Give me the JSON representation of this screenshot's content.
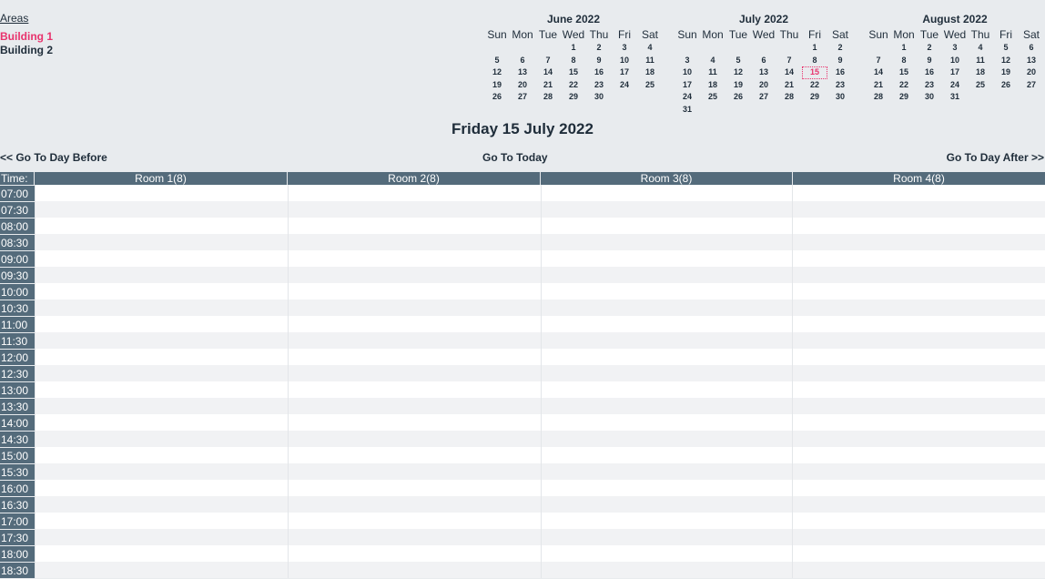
{
  "areas": {
    "title": "Areas",
    "items": [
      {
        "label": "Building 1",
        "active": true
      },
      {
        "label": "Building 2",
        "active": false
      }
    ]
  },
  "weekdays": [
    "Sun",
    "Mon",
    "Tue",
    "Wed",
    "Thu",
    "Fri",
    "Sat"
  ],
  "calendars": [
    {
      "title": "June 2022",
      "days": [
        "",
        "",
        "",
        "1",
        "2",
        "3",
        "4",
        "5",
        "6",
        "7",
        "8",
        "9",
        "10",
        "11",
        "12",
        "13",
        "14",
        "15",
        "16",
        "17",
        "18",
        "19",
        "20",
        "21",
        "22",
        "23",
        "24",
        "25",
        "26",
        "27",
        "28",
        "29",
        "30",
        "",
        ""
      ],
      "today": ""
    },
    {
      "title": "July 2022",
      "days": [
        "",
        "",
        "",
        "",
        "",
        "1",
        "2",
        "3",
        "4",
        "5",
        "6",
        "7",
        "8",
        "9",
        "10",
        "11",
        "12",
        "13",
        "14",
        "15",
        "16",
        "17",
        "18",
        "19",
        "20",
        "21",
        "22",
        "23",
        "24",
        "25",
        "26",
        "27",
        "28",
        "29",
        "30",
        "31",
        "",
        "",
        "",
        "",
        "",
        ""
      ],
      "today": "15"
    },
    {
      "title": "August 2022",
      "days": [
        "",
        "1",
        "2",
        "3",
        "4",
        "5",
        "6",
        "7",
        "8",
        "9",
        "10",
        "11",
        "12",
        "13",
        "14",
        "15",
        "16",
        "17",
        "18",
        "19",
        "20",
        "21",
        "22",
        "23",
        "24",
        "25",
        "26",
        "27",
        "28",
        "29",
        "30",
        "31",
        "",
        "",
        ""
      ],
      "today": ""
    }
  ],
  "date_heading": "Friday 15 July 2022",
  "nav": {
    "prev": "<< Go To Day Before",
    "today": "Go To Today",
    "next": "Go To Day After >>"
  },
  "schedule": {
    "time_header": "Time:",
    "rooms": [
      "Room 1(8)",
      "Room 2(8)",
      "Room 3(8)",
      "Room 4(8)"
    ],
    "times": [
      "07:00",
      "07:30",
      "08:00",
      "08:30",
      "09:00",
      "09:30",
      "10:00",
      "10:30",
      "11:00",
      "11:30",
      "12:00",
      "12:30",
      "13:00",
      "13:30",
      "14:00",
      "14:30",
      "15:00",
      "15:30",
      "16:00",
      "16:30",
      "17:00",
      "17:30",
      "18:00",
      "18:30"
    ]
  },
  "colors": {
    "accent": "#e8336d",
    "header_bg": "#546b7b",
    "page_bg": "#e8ebee"
  }
}
